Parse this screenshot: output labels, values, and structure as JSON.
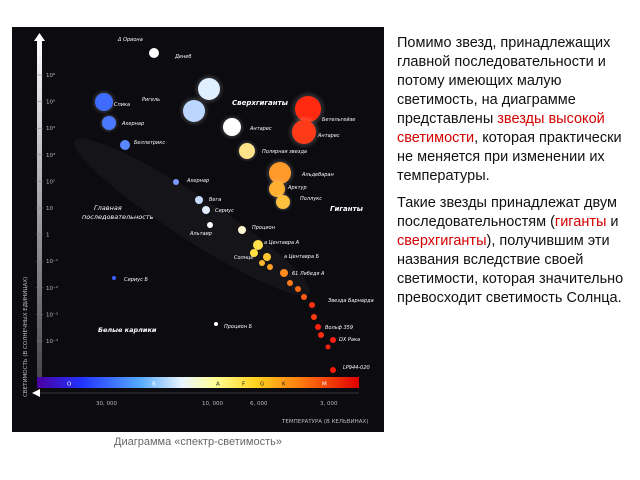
{
  "diagram": {
    "y_ticks": [
      "10⁶",
      "10⁵",
      "10⁴",
      "10³",
      "10²",
      "10",
      "1",
      "10⁻¹",
      "10⁻²",
      "10⁻³",
      "10⁻⁴"
    ],
    "y_axis_label": "СВЕТИМОСТЬ (В СОЛНЕЧНЫХ ЕДИНИЦАХ)",
    "spectral_classes": [
      "O",
      "B",
      "A",
      "F",
      "G",
      "K",
      "M"
    ],
    "x_ticks": [
      "30, 000",
      "10, 000",
      "6, 000",
      "3, 000"
    ],
    "x_axis_label": "ТЕМПЕРАТУРА (В КЕЛЬВИНАХ)",
    "region_supergiants": "Сверхгиганты",
    "region_giants": "Гиганты",
    "region_main_sequence": "Главная последовательность",
    "region_white_dwarfs": "Белые карлики",
    "stars": [
      {
        "name": "Δ Ориона",
        "color": "#ffffff"
      },
      {
        "name": "Денеб",
        "color": "#dfefff"
      },
      {
        "name": "Ригель",
        "color": "#bcd7ff"
      },
      {
        "name": "Спика",
        "color": "#3f6cff"
      },
      {
        "name": "Бетельгейзе",
        "color": "#ff2a10"
      },
      {
        "name": "Антарес",
        "color": "#ff3a18"
      },
      {
        "name": "Ахернар",
        "color": "#4a78ff"
      },
      {
        "name": "Беллатрикс",
        "color": "#5a86ff"
      },
      {
        "name": "Антарес",
        "color": "#ffffff"
      },
      {
        "name": "Полярная звезда",
        "color": "#ffe48a"
      },
      {
        "name": "Альдебаран",
        "color": "#ff9a2a"
      },
      {
        "name": "Арктур",
        "color": "#ffb030"
      },
      {
        "name": "Поллукс",
        "color": "#ffc040"
      },
      {
        "name": "Ахернар",
        "color": "#7a9cff"
      },
      {
        "name": "Вега",
        "color": "#c6dcff"
      },
      {
        "name": "Сириус",
        "color": "#e2ecff"
      },
      {
        "name": "Альтаир",
        "color": "#ffffff"
      },
      {
        "name": "Процион",
        "color": "#fff6d0"
      },
      {
        "name": "а Центавра А",
        "color": "#ffe24a"
      },
      {
        "name": "Солнце",
        "color": "#ffe040"
      },
      {
        "name": "а Центавра Б",
        "color": "#ffc830"
      },
      {
        "name": "61 Лебедя А",
        "color": "#ff8a20"
      },
      {
        "name": "Звезда Барнарда",
        "color": "#ff3010"
      },
      {
        "name": "Вольф 359",
        "color": "#ff2010"
      },
      {
        "name": "DX Рака",
        "color": "#ff2010"
      },
      {
        "name": "LP944-020",
        "color": "#ff1a08"
      },
      {
        "name": "Сириус Б",
        "color": "#3a60ff"
      },
      {
        "name": "Процион Б",
        "color": "#ffffff"
      }
    ]
  },
  "caption": "Диаграмма «спектр-светимость»",
  "text": {
    "p1_part1": "Помимо звезд, принадлежащих главной последовательности и потому имеющих малую светимость, на диаграмме представлены ",
    "p1_highlight": "звезды высокой светимости",
    "p1_part2": ", которая практически не меняется при изменении их температуры.",
    "p2_part1": "Такие звезды принадлежат двум последовательностям (",
    "p2_giants": "гиганты",
    "p2_and": " и ",
    "p2_supergiants": "сверхгиганты",
    "p2_part2": "), получившим эти названия вследствие своей светимости, которая значительно превосходит светимость Солнца."
  },
  "colors": {
    "highlight": "#d40000",
    "background": "#0b0b10"
  }
}
